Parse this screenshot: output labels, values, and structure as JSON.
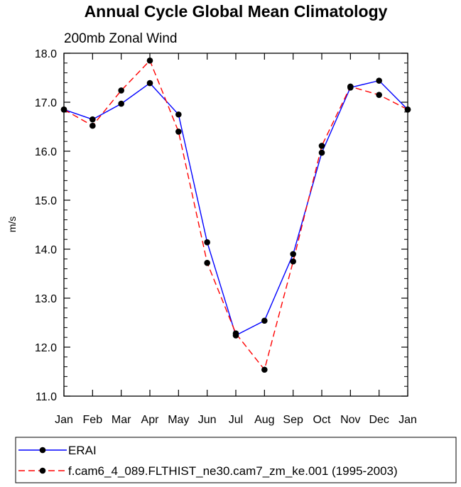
{
  "chart_data": {
    "type": "line",
    "title": "Annual Cycle Global Mean Climatology",
    "subtitle": "200mb Zonal Wind",
    "ylabel": "m/s",
    "xlabel": "",
    "categories": [
      "Jan",
      "Feb",
      "Mar",
      "Apr",
      "May",
      "Jun",
      "Jul",
      "Aug",
      "Sep",
      "Oct",
      "Nov",
      "Dec",
      "Jan"
    ],
    "ylim": [
      11.0,
      18.0
    ],
    "yticks": [
      "11.0",
      "12.0",
      "13.0",
      "14.0",
      "15.0",
      "16.0",
      "17.0",
      "18.0"
    ],
    "grid": false,
    "legend_position": "bottom",
    "series": [
      {
        "name": "ERAI",
        "color": "#0000ff",
        "dash": "solid",
        "values": [
          16.85,
          16.65,
          16.97,
          17.39,
          16.75,
          14.14,
          12.24,
          12.54,
          13.9,
          15.97,
          17.3,
          17.44,
          16.85
        ]
      },
      {
        "name": "f.cam6_4_089.FLTHIST_ne30.cam7_zm_ke.001 (1995-2003)",
        "color": "#ff0000",
        "dash": "dashed",
        "values": [
          16.85,
          16.52,
          17.24,
          17.85,
          16.4,
          13.72,
          12.28,
          11.54,
          13.75,
          16.11,
          17.32,
          17.15,
          16.85
        ]
      }
    ]
  }
}
